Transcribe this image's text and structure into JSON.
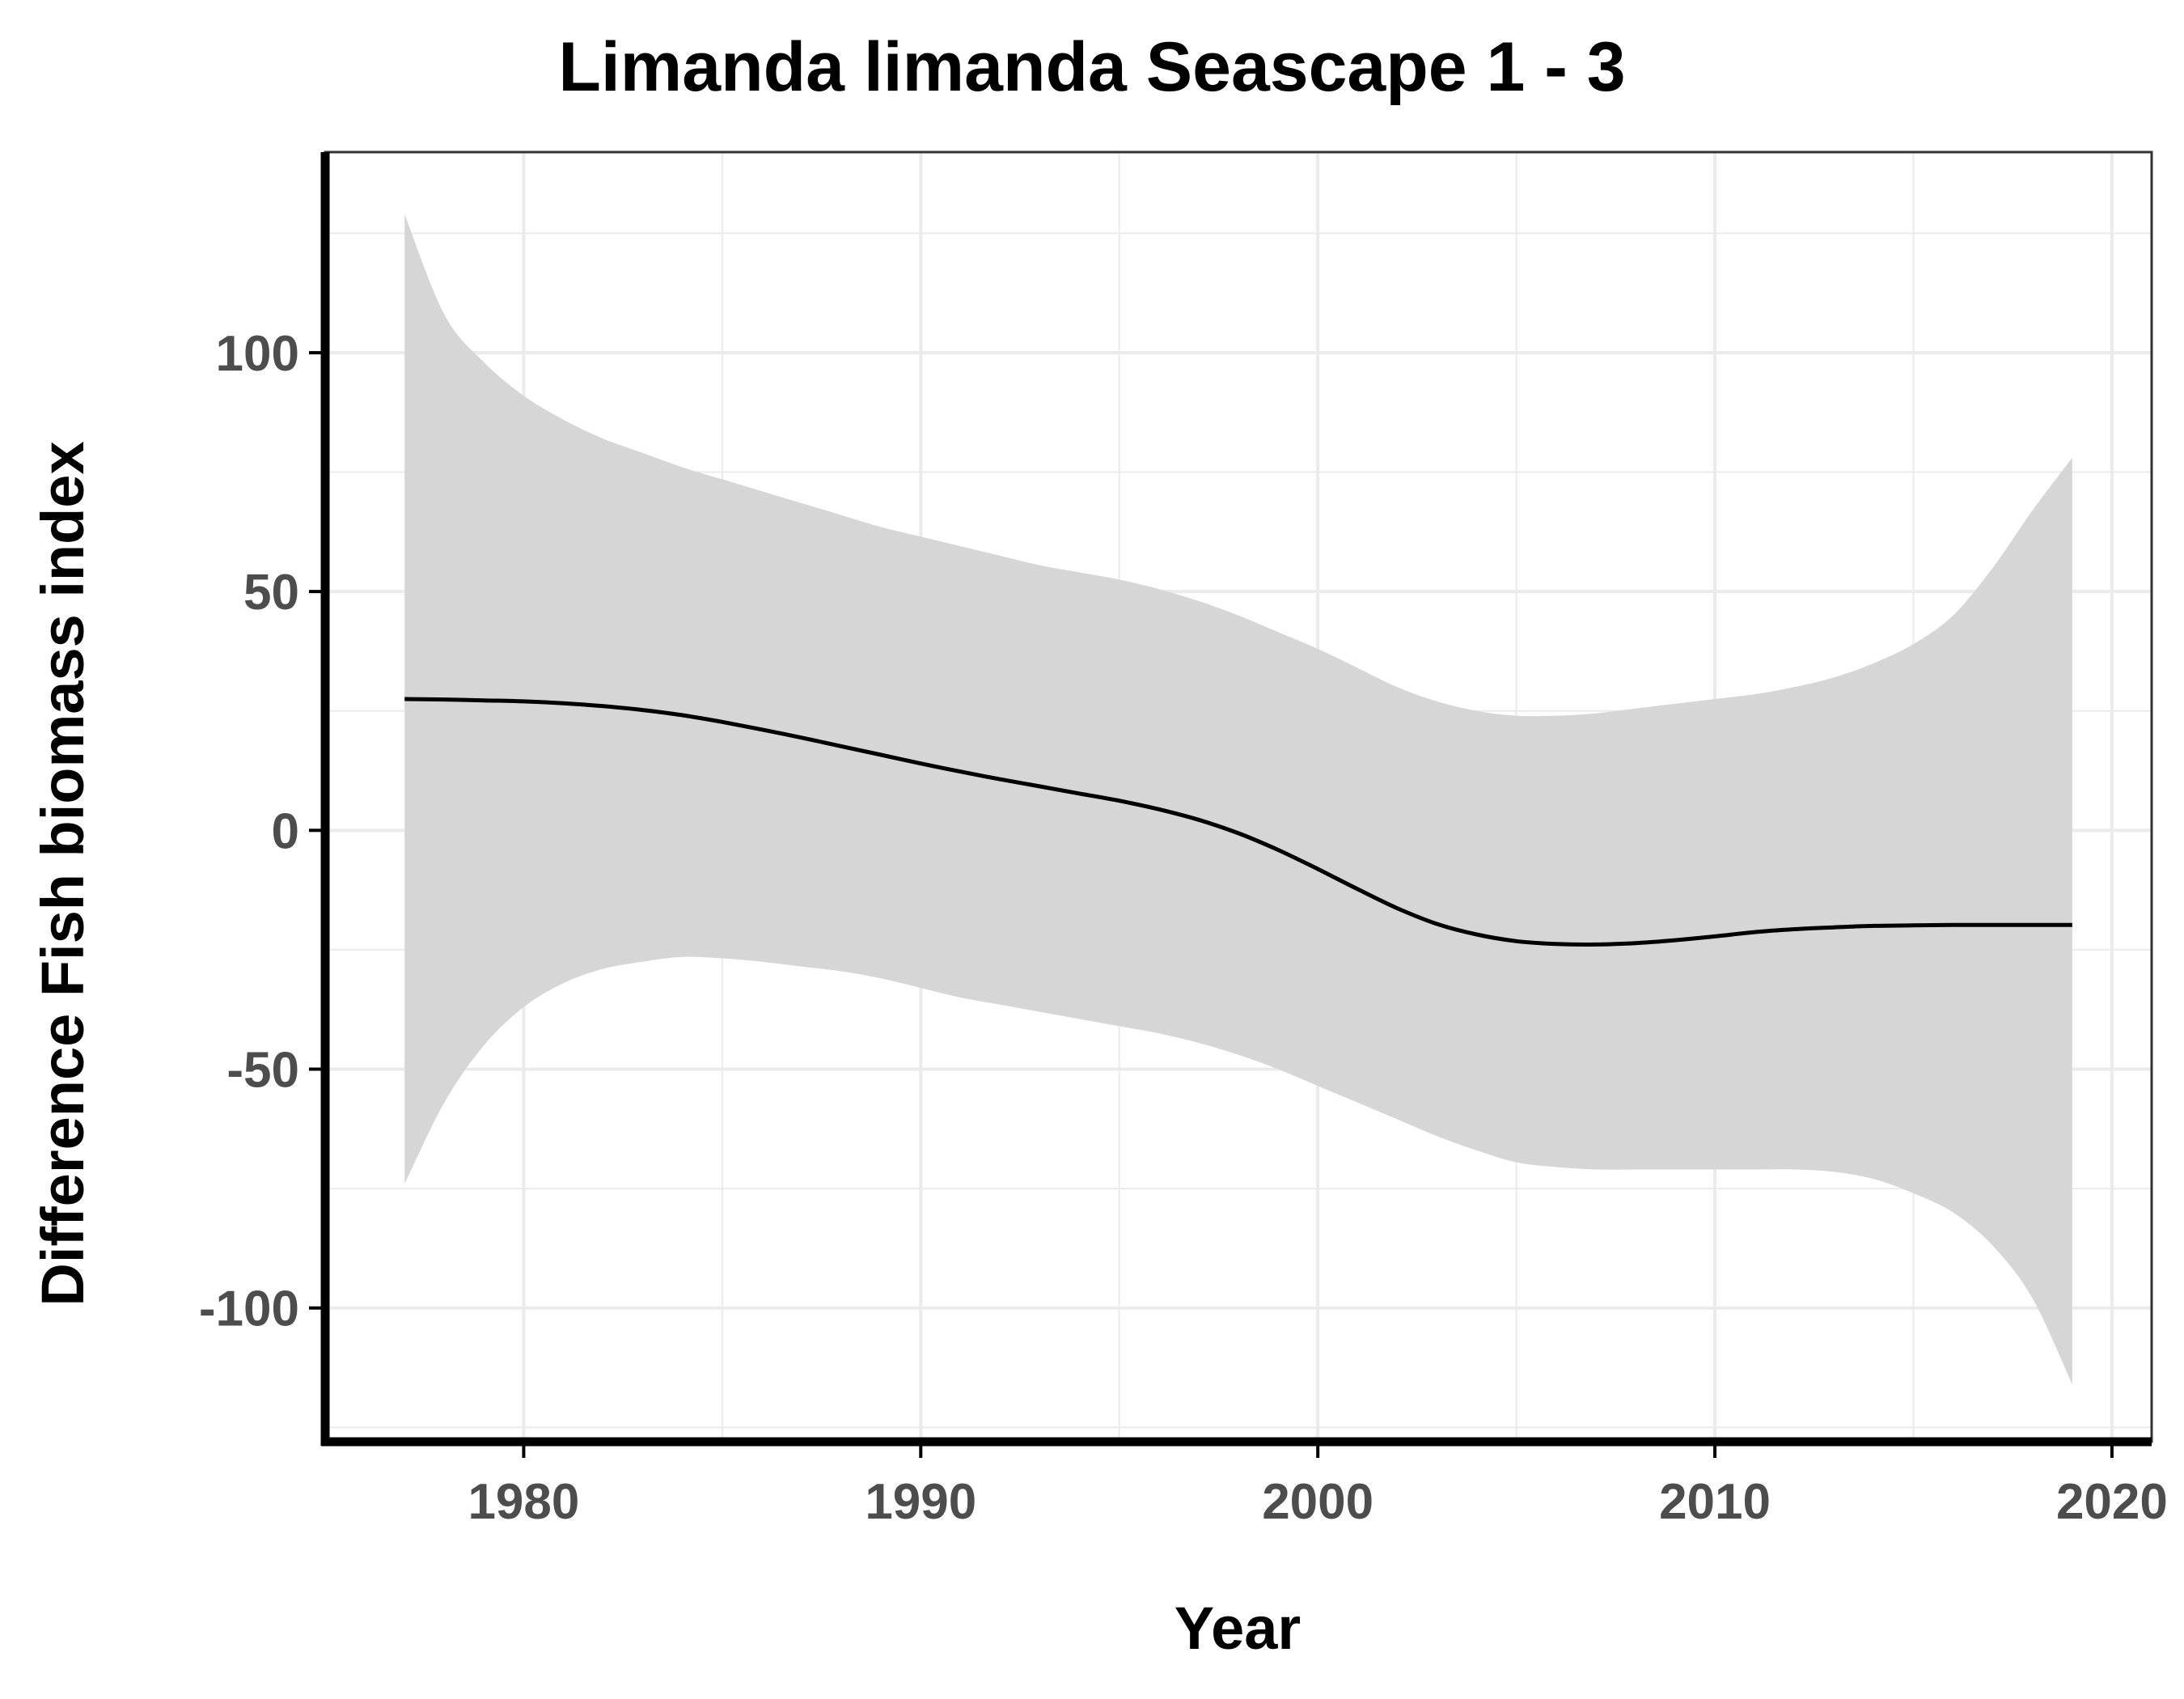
{
  "chart_data": {
    "type": "line",
    "title": "Limanda limanda Seascape 1 - 3",
    "xlabel": "Year",
    "ylabel": "Difference Fish biomass index",
    "xlim": [
      1975,
      2021
    ],
    "ylim": [
      -128,
      142
    ],
    "x_ticks": [
      1980,
      1990,
      2000,
      2010,
      2020
    ],
    "y_ticks": [
      -100,
      -50,
      0,
      50,
      100
    ],
    "y_tick_labels": [
      "-100",
      "-50",
      "0",
      "50",
      "100"
    ],
    "grid": true,
    "legend": "none",
    "colors": {
      "line": "#000000",
      "ribbon": "#d6d6d6",
      "grid": "#ebebeb",
      "axis": "#000000"
    },
    "series": [
      {
        "x": [
          1977,
          1978,
          1979,
          1980,
          1981,
          1982,
          1983,
          1984,
          1985,
          1986,
          1987,
          1988,
          1989,
          1990,
          1991,
          1992,
          1993,
          1994,
          1995,
          1996,
          1997,
          1998,
          1999,
          2000,
          2001,
          2002,
          2003,
          2004,
          2005,
          2006,
          2007,
          2008,
          2009,
          2010,
          2011,
          2012,
          2013,
          2014,
          2015,
          2016,
          2017,
          2018,
          2019
        ],
        "y": [
          27.5,
          27.4,
          27.2,
          27.0,
          26.6,
          26.0,
          25.2,
          24.1,
          22.7,
          21.1,
          19.4,
          17.6,
          15.8,
          14.0,
          12.3,
          10.7,
          9.2,
          7.7,
          6.2,
          4.4,
          2.2,
          -0.6,
          -4.1,
          -8.1,
          -12.3,
          -16.3,
          -19.6,
          -21.8,
          -23.2,
          -23.8,
          -23.9,
          -23.6,
          -23.0,
          -22.2,
          -21.3,
          -20.7,
          -20.3,
          -20.0,
          -19.9,
          -19.8,
          -19.8,
          -19.8,
          -19.8
        ],
        "lower": [
          -74,
          -57,
          -45,
          -37,
          -32,
          -29,
          -27.5,
          -26.5,
          -26.8,
          -27.5,
          -28.5,
          -29.5,
          -31,
          -33,
          -35,
          -36.5,
          -38,
          -39.5,
          -41,
          -42.5,
          -44.5,
          -47,
          -50,
          -53.5,
          -57,
          -60.5,
          -64,
          -67,
          -69.5,
          -70.5,
          -71,
          -71,
          -71,
          -71,
          -71,
          -71,
          -71.5,
          -73,
          -76,
          -80,
          -87,
          -98,
          -116
        ],
        "upper": [
          129,
          108,
          98,
          91,
          86,
          82,
          79,
          76,
          73.5,
          71,
          68.5,
          66,
          63.5,
          61.5,
          59.5,
          57.5,
          55.5,
          54,
          52.5,
          50.5,
          48,
          45,
          41.5,
          38,
          34,
          30,
          27,
          25,
          24,
          24,
          24.5,
          25.5,
          26.5,
          27.5,
          28.5,
          30,
          32,
          35,
          39,
          45,
          55,
          67,
          78
        ]
      }
    ]
  }
}
